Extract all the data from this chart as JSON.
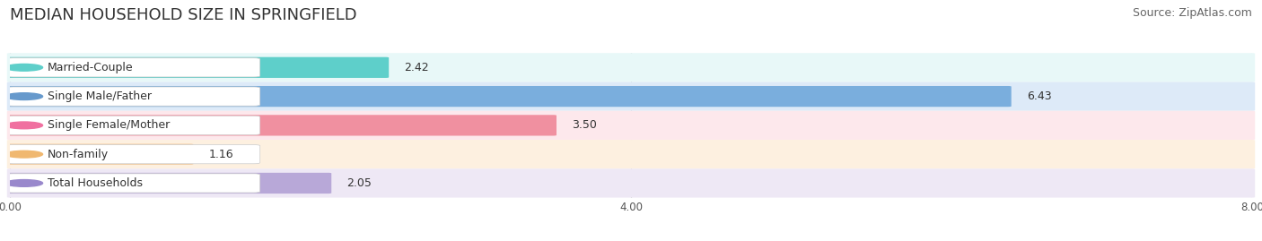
{
  "title": "MEDIAN HOUSEHOLD SIZE IN SPRINGFIELD",
  "source": "Source: ZipAtlas.com",
  "categories": [
    "Married-Couple",
    "Single Male/Father",
    "Single Female/Mother",
    "Non-family",
    "Total Households"
  ],
  "values": [
    2.42,
    6.43,
    3.5,
    1.16,
    2.05
  ],
  "value_labels": [
    "2.42",
    "6.43",
    "3.50",
    "1.16",
    "2.05"
  ],
  "bar_colors": [
    "#5ecfca",
    "#7aaedd",
    "#f090a0",
    "#f5c897",
    "#b8a8d8"
  ],
  "dot_colors": [
    "#5ecfca",
    "#6699cc",
    "#f070a0",
    "#f0b870",
    "#9988cc"
  ],
  "row_bg_colors": [
    "#e8f8f8",
    "#ddeaf8",
    "#fde8ec",
    "#fdf0e0",
    "#eee8f5"
  ],
  "xlim": [
    0,
    8.0
  ],
  "xtick_labels": [
    "0.00",
    "4.00",
    "8.00"
  ],
  "xtick_values": [
    0.0,
    4.0,
    8.0
  ],
  "title_fontsize": 13,
  "source_fontsize": 9,
  "label_fontsize": 9,
  "value_fontsize": 9,
  "background_color": "#ffffff"
}
